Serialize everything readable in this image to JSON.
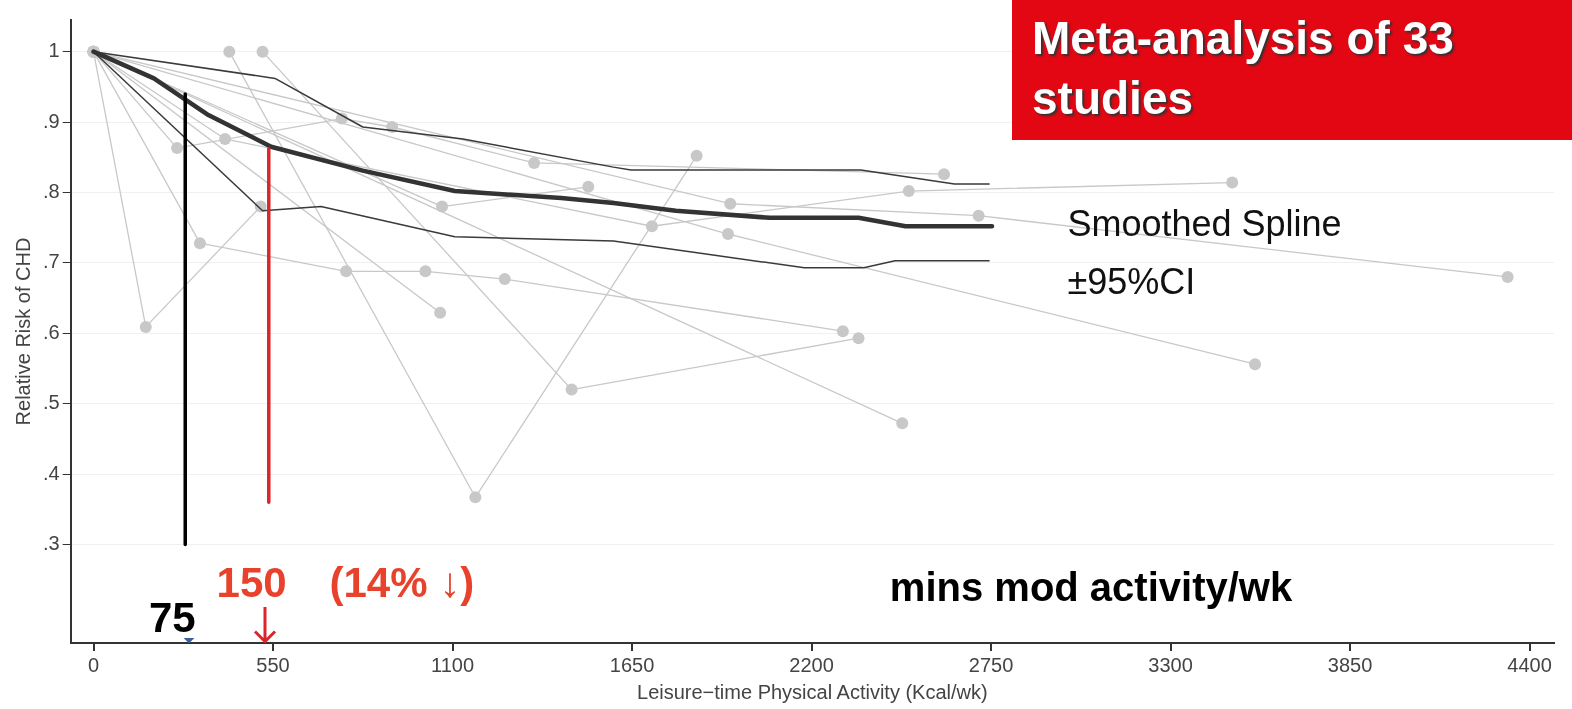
{
  "chart_data": {
    "type": "line",
    "title": "Meta-analysis of 33 studies",
    "xlabel": "Leisure−time Physical Activity (Kcal/wk)",
    "ylabel": "Relative Risk of CHD",
    "xlim": [
      -70,
      4475
    ],
    "xticks": [
      0,
      550,
      1100,
      1650,
      2200,
      2750,
      3300,
      3850,
      4400
    ],
    "ylim": [
      0.16,
      1.045
    ],
    "yticks": [
      {
        "value": 0.3,
        "label": ".3"
      },
      {
        "value": 0.4,
        "label": ".4"
      },
      {
        "value": 0.5,
        "label": ".5"
      },
      {
        "value": 0.6,
        "label": ".6"
      },
      {
        "value": 0.7,
        "label": ".7"
      },
      {
        "value": 0.8,
        "label": ".8"
      },
      {
        "value": 0.9,
        "label": ".9"
      },
      {
        "value": 1,
        "label": "1"
      }
    ],
    "grid": "y",
    "legend": false,
    "marker": "none",
    "line_style": "solid",
    "series": [
      {
        "color": "#c8c8c8",
        "marker": "circle",
        "x": [
          0,
          256,
          761,
          915,
          1350,
          2606
        ],
        "values": [
          1,
          0.863,
          0.905,
          0.893,
          0.842,
          0.826
        ]
      },
      {
        "color": "#c8c8c8",
        "marker": "circle",
        "x": [
          0,
          403,
          1711,
          2498,
          3489
        ],
        "values": [
          1,
          0.876,
          0.752,
          0.802,
          0.814
        ]
      },
      {
        "color": "#c8c8c8",
        "marker": "circle",
        "x": [
          0,
          326,
          774,
          1017,
          1260,
          2296
        ],
        "values": [
          1,
          0.728,
          0.688,
          0.688,
          0.677,
          0.603
        ]
      },
      {
        "color": "#c8c8c8",
        "marker": "circle",
        "x": [
          0,
          1068,
          1516
        ],
        "values": [
          1,
          0.78,
          0.808
        ]
      },
      {
        "color": "#c8c8c8",
        "marker": "circle",
        "x": [
          0,
          160,
          512
        ],
        "values": [
          1,
          0.609,
          0.78
        ]
      },
      {
        "color": "#c8c8c8",
        "marker": "circle",
        "x": [
          416,
          1170,
          1848
        ],
        "values": [
          1,
          0.367,
          0.852
        ]
      },
      {
        "color": "#c8c8c8",
        "marker": "circle",
        "x": [
          518,
          1465,
          2344
        ],
        "values": [
          1,
          0.52,
          0.593
        ]
      },
      {
        "color": "#c8c8c8",
        "marker": "circle",
        "x": [
          0,
          1062
        ],
        "values": [
          1,
          0.629
        ]
      },
      {
        "color": "#c8c8c8",
        "marker": "circle",
        "x": [
          0,
          1944,
          3559
        ],
        "values": [
          1,
          0.741,
          0.556
        ]
      },
      {
        "color": "#c8c8c8",
        "marker": "circle",
        "x": [
          0,
          2478
        ],
        "values": [
          1,
          0.472
        ]
      },
      {
        "color": "#c8c8c8",
        "marker": "circle",
        "x": [
          0,
          1951,
          2712,
          4333
        ],
        "values": [
          1,
          0.784,
          0.767,
          0.68
        ]
      },
      {
        "color": "#3a3a3a",
        "x": [
          0,
          556,
          825,
          1132,
          1593,
          1647,
          2351,
          2638,
          2744
        ],
        "values": [
          1,
          0.962,
          0.893,
          0.876,
          0.836,
          0.832,
          0.832,
          0.812,
          0.812
        ]
      },
      {
        "color": "#3a3a3a",
        "x": [
          0,
          518,
          697,
          1107,
          1593,
          2178,
          2360,
          2456,
          2744
        ],
        "values": [
          1,
          0.774,
          0.78,
          0.737,
          0.731,
          0.693,
          0.693,
          0.703,
          0.703
        ]
      },
      {
        "color": "#333333",
        "x": [
          0,
          185,
          352,
          544,
          825,
          1107,
          1433,
          1593,
          1784,
          2072,
          2344,
          2488,
          2753
        ],
        "values": [
          1,
          0.962,
          0.91,
          0.865,
          0.831,
          0.802,
          0.792,
          0.785,
          0.774,
          0.764,
          0.764,
          0.752,
          0.752
        ]
      },
      {
        "color": "#000000",
        "x": [
          281,
          281
        ],
        "values": [
          0.94,
          0.3
        ]
      },
      {
        "color": "#d9262c",
        "x": [
          537,
          537
        ],
        "values": [
          0.862,
          0.36
        ]
      }
    ],
    "annotations": [
      "75",
      "150",
      "(14% ↓)",
      "mins mod activity/wk",
      "Smoothed Spline\n±95%CI"
    ]
  }
}
